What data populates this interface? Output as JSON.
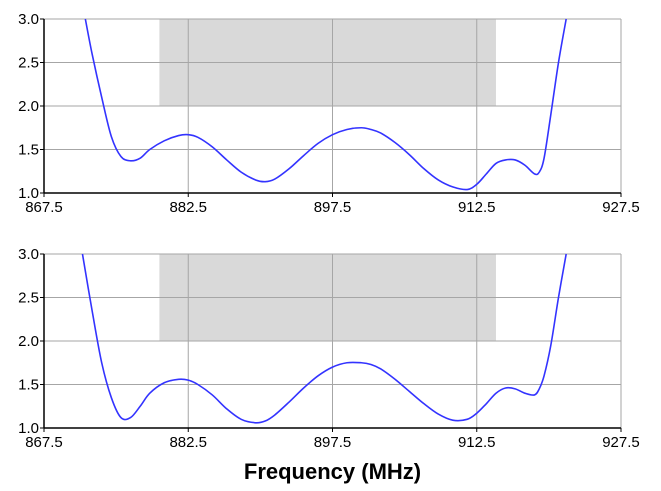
{
  "chart_data": [
    {
      "type": "line",
      "xlim": [
        867.5,
        927.5
      ],
      "ylim": [
        1.0,
        3.0
      ],
      "x_ticks": [
        "867.5",
        "882.5",
        "897.5",
        "912.5",
        "927.5"
      ],
      "y_ticks": [
        "1.0",
        "1.5",
        "2.0",
        "2.5",
        "3.0"
      ],
      "grid": true,
      "xlabel": "",
      "ylabel": "",
      "band": {
        "x": [
          879.5,
          914.5
        ],
        "y": [
          2.0,
          3.0
        ],
        "color": "#d9d9d9"
      },
      "series": [
        {
          "color": "#3333ff",
          "x": [
            871.8,
            872.5,
            873.5,
            874.5,
            875.5,
            876.5,
            877.5,
            878.5,
            880.0,
            881.5,
            882.5,
            883.5,
            885.0,
            886.5,
            888.0,
            889.5,
            890.5,
            891.5,
            893.0,
            894.5,
            896.0,
            897.5,
            899.0,
            900.5,
            901.5,
            902.5,
            904.0,
            905.5,
            907.0,
            908.5,
            910.0,
            911.5,
            912.5,
            913.5,
            914.5,
            915.5,
            916.5,
            917.5,
            918.5,
            919.0,
            919.5,
            920.2,
            921.0,
            921.8
          ],
          "y": [
            3.0,
            2.6,
            2.1,
            1.65,
            1.42,
            1.37,
            1.4,
            1.5,
            1.6,
            1.66,
            1.67,
            1.64,
            1.53,
            1.38,
            1.24,
            1.15,
            1.13,
            1.16,
            1.28,
            1.43,
            1.57,
            1.67,
            1.73,
            1.75,
            1.73,
            1.69,
            1.58,
            1.44,
            1.28,
            1.15,
            1.07,
            1.04,
            1.1,
            1.22,
            1.34,
            1.38,
            1.38,
            1.32,
            1.22,
            1.24,
            1.4,
            1.9,
            2.5,
            3.0
          ]
        }
      ]
    },
    {
      "type": "line",
      "xlim": [
        867.5,
        927.5
      ],
      "ylim": [
        1.0,
        3.0
      ],
      "x_ticks": [
        "867.5",
        "882.5",
        "897.5",
        "912.5",
        "927.5"
      ],
      "y_ticks": [
        "1.0",
        "1.5",
        "2.0",
        "2.5",
        "3.0"
      ],
      "grid": true,
      "xlabel": "Frequency (MHz)",
      "ylabel": "",
      "band": {
        "x": [
          879.5,
          914.5
        ],
        "y": [
          2.0,
          3.0
        ],
        "color": "#d9d9d9"
      },
      "series": [
        {
          "color": "#3333ff",
          "x": [
            871.5,
            872.5,
            873.5,
            874.5,
            875.5,
            876.5,
            877.5,
            878.5,
            880.0,
            881.5,
            882.5,
            883.5,
            885.0,
            886.5,
            888.0,
            889.5,
            890.5,
            891.5,
            893.0,
            894.5,
            896.0,
            897.5,
            899.0,
            900.5,
            901.5,
            902.5,
            904.0,
            905.5,
            907.0,
            908.5,
            910.0,
            911.5,
            912.5,
            913.5,
            914.5,
            915.5,
            916.5,
            917.5,
            918.5,
            919.0,
            919.5,
            920.2,
            921.0,
            921.8
          ],
          "y": [
            3.0,
            2.35,
            1.75,
            1.35,
            1.12,
            1.12,
            1.25,
            1.4,
            1.52,
            1.56,
            1.55,
            1.5,
            1.38,
            1.22,
            1.1,
            1.06,
            1.08,
            1.15,
            1.3,
            1.46,
            1.6,
            1.7,
            1.75,
            1.75,
            1.73,
            1.68,
            1.56,
            1.42,
            1.28,
            1.16,
            1.09,
            1.1,
            1.17,
            1.28,
            1.4,
            1.46,
            1.45,
            1.4,
            1.38,
            1.45,
            1.6,
            1.95,
            2.5,
            3.0
          ]
        }
      ]
    }
  ]
}
